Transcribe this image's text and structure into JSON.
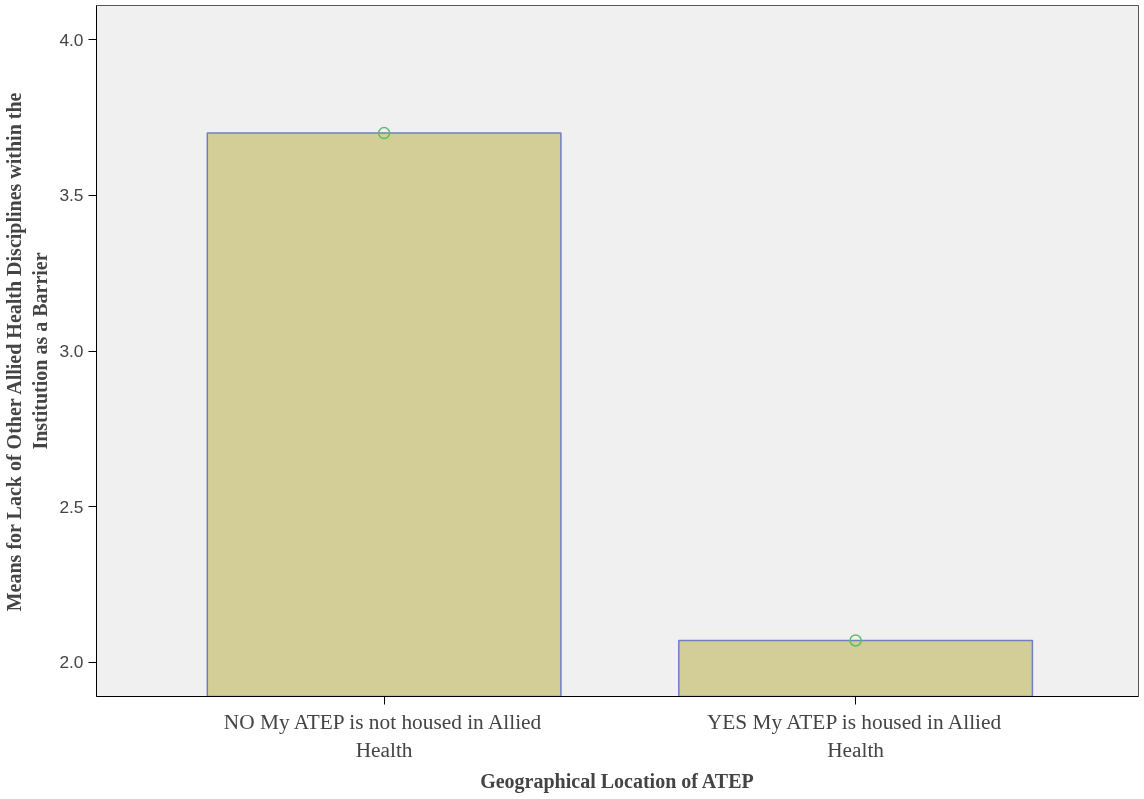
{
  "chart_data": {
    "type": "bar",
    "xlabel": "Geographical Location of ATEP",
    "ylabel": "Means for Lack of Other Allied Health Disciplines within the Institution as a Barrier",
    "categories": [
      "NO My ATEP is not housed in Allied Health",
      "YES My ATEP is housed in Allied Health"
    ],
    "series": [
      {
        "color": "#d3ce97",
        "values": [
          3.7,
          2.07
        ]
      },
      {
        "type": "scatter",
        "color": "#5cbf5c",
        "marker": "circle",
        "x": [
          "NO My ATEP is not housed in Allied Health",
          "YES My ATEP is housed in Allied Health"
        ],
        "values": [
          3.7,
          2.07
        ]
      }
    ],
    "ylim": [
      1.89,
      4.11
    ],
    "yticks": [
      {
        "value": 2.0,
        "label": "2.0"
      },
      {
        "value": 2.5,
        "label": "2.5"
      },
      {
        "value": 3.0,
        "label": "3.0"
      },
      {
        "value": 3.5,
        "label": "3.5"
      },
      {
        "value": 4.0,
        "label": "4.0"
      }
    ],
    "grid": false
  }
}
